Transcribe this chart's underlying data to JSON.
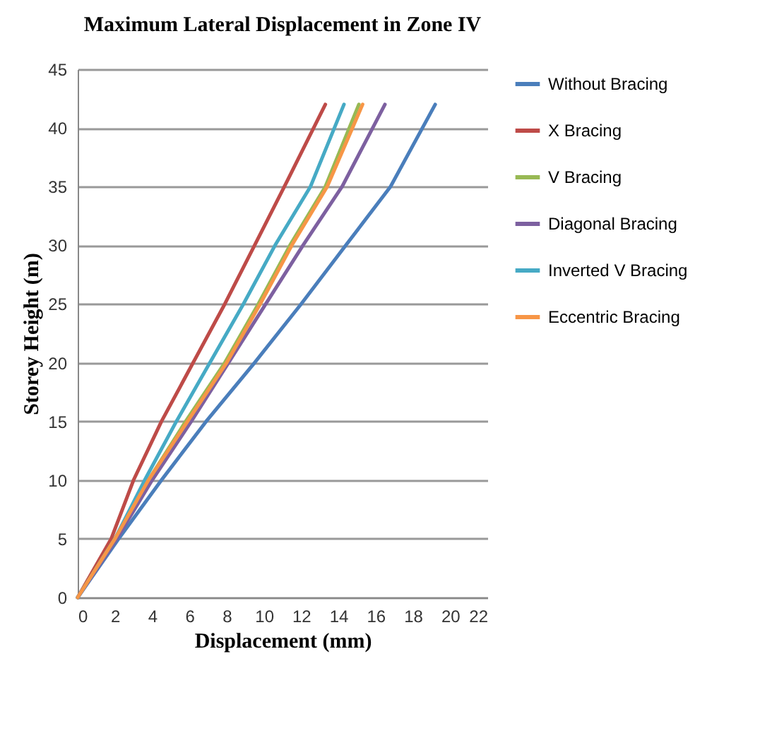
{
  "chart_data": {
    "type": "line",
    "title": "Maximum Lateral Displacement in Zone IV",
    "xlabel": "Displacement (mm)",
    "ylabel": "Storey Height (m)",
    "xlim": [
      0,
      22
    ],
    "xticks": [
      0,
      2,
      4,
      6,
      8,
      10,
      12,
      14,
      16,
      18,
      20,
      22
    ],
    "ylim": [
      0,
      45
    ],
    "yticks": [
      0,
      5,
      10,
      15,
      20,
      25,
      30,
      35,
      40,
      45
    ],
    "grid": "y",
    "legend": "right",
    "marker": "none",
    "line_style": "solid",
    "series": [
      {
        "name": "Without Bracing",
        "color": "#4a7ebb",
        "x": [
          0,
          2.2,
          4.5,
          6.9,
          9.5,
          12.0,
          14.4,
          16.8,
          19.2
        ],
        "values": [
          0,
          5,
          10,
          15,
          20,
          25,
          30,
          35,
          42
        ]
      },
      {
        "name": "X Bracing",
        "color": "#be4b48",
        "x": [
          0,
          1.8,
          3.0,
          4.5,
          6.2,
          7.9,
          9.5,
          11.1,
          13.3
        ],
        "values": [
          0,
          5,
          10,
          15,
          20,
          25,
          30,
          35,
          42
        ]
      },
      {
        "name": "V Bracing",
        "color": "#98b954",
        "x": [
          0,
          2.0,
          3.8,
          5.8,
          7.9,
          9.7,
          11.4,
          13.3,
          15.1
        ],
        "values": [
          0,
          5,
          10,
          15,
          20,
          25,
          30,
          35,
          42
        ]
      },
      {
        "name": "Diagonal Bracing",
        "color": "#7d60a0",
        "x": [
          0,
          2.1,
          4.0,
          6.1,
          8.1,
          10.1,
          12.1,
          14.2,
          16.5
        ],
        "values": [
          0,
          5,
          10,
          15,
          20,
          25,
          30,
          35,
          42
        ]
      },
      {
        "name": "Inverted V Bracing",
        "color": "#46aac5",
        "x": [
          0,
          2.0,
          3.6,
          5.3,
          7.1,
          8.9,
          10.6,
          12.5,
          14.3
        ],
        "values": [
          0,
          5,
          10,
          15,
          20,
          25,
          30,
          35,
          42
        ]
      },
      {
        "name": "Eccentric Bracing",
        "color": "#f79646",
        "x": [
          0,
          2.0,
          3.8,
          5.9,
          8.0,
          9.8,
          11.5,
          13.4,
          15.3
        ],
        "values": [
          0,
          5,
          10,
          15,
          20,
          25,
          30,
          35,
          42
        ]
      }
    ]
  }
}
